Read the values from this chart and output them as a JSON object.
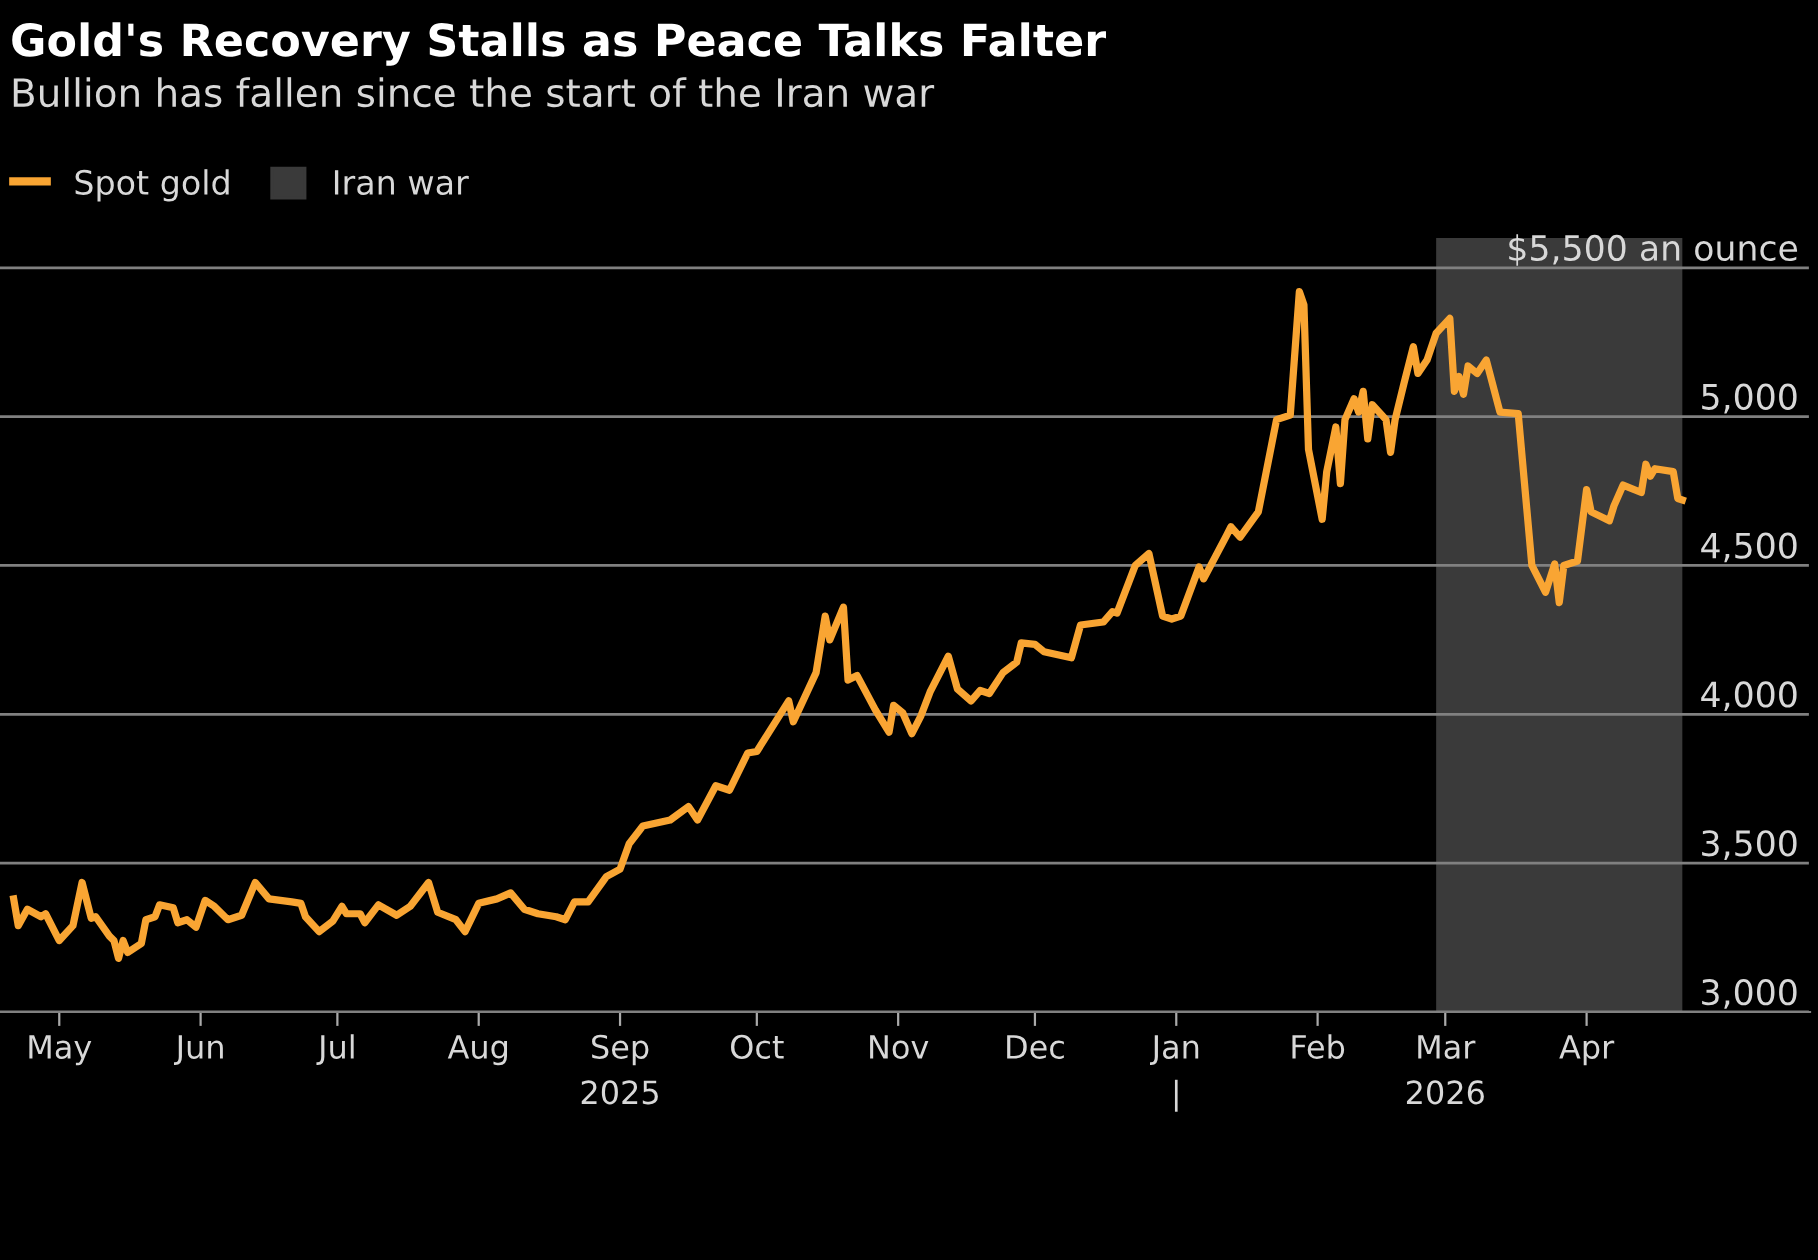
{
  "chart_data": {
    "type": "line",
    "title": "Gold's Recovery Stalls as Peace Talks Falter",
    "subtitle": "Bullion has fallen since the start of the Iran war",
    "series": [
      {
        "name": "Spot gold",
        "color": "#f9a533",
        "x": [
          "2025-04-21",
          "2025-04-22",
          "2025-04-24",
          "2025-04-27",
          "2025-04-28",
          "2025-05-01",
          "2025-05-04",
          "2025-05-06",
          "2025-05-08",
          "2025-05-09",
          "2025-05-12",
          "2025-05-13",
          "2025-05-14",
          "2025-05-15",
          "2025-05-16",
          "2025-05-19",
          "2025-05-20",
          "2025-05-22",
          "2025-05-23",
          "2025-05-26",
          "2025-05-27",
          "2025-05-29",
          "2025-05-31",
          "2025-06-02",
          "2025-06-04",
          "2025-06-07",
          "2025-06-10",
          "2025-06-13",
          "2025-06-16",
          "2025-06-21",
          "2025-06-23",
          "2025-06-24",
          "2025-06-27",
          "2025-06-30",
          "2025-07-02",
          "2025-07-03",
          "2025-07-06",
          "2025-07-07",
          "2025-07-10",
          "2025-07-14",
          "2025-07-17",
          "2025-07-21",
          "2025-07-23",
          "2025-07-27",
          "2025-07-29",
          "2025-08-01",
          "2025-08-05",
          "2025-08-08",
          "2025-08-11",
          "2025-08-14",
          "2025-08-18",
          "2025-08-20",
          "2025-08-22",
          "2025-08-25",
          "2025-08-29",
          "2025-09-01",
          "2025-09-03",
          "2025-09-06",
          "2025-09-09",
          "2025-09-12",
          "2025-09-16",
          "2025-09-18",
          "2025-09-22",
          "2025-09-25",
          "2025-09-29",
          "2025-10-01",
          "2025-10-08",
          "2025-10-09",
          "2025-10-14",
          "2025-10-16",
          "2025-10-17",
          "2025-10-20",
          "2025-10-21",
          "2025-10-23",
          "2025-10-27",
          "2025-10-30",
          "2025-10-31",
          "2025-11-02",
          "2025-11-04",
          "2025-11-06",
          "2025-11-08",
          "2025-11-12",
          "2025-11-14",
          "2025-11-17",
          "2025-11-19",
          "2025-11-21",
          "2025-11-24",
          "2025-11-27",
          "2025-11-28",
          "2025-12-01",
          "2025-12-03",
          "2025-12-09",
          "2025-12-11",
          "2025-12-16",
          "2025-12-18",
          "2025-12-19",
          "2025-12-23",
          "2025-12-26",
          "2025-12-29",
          "2025-12-31",
          "2026-01-02",
          "2026-01-06",
          "2026-01-07",
          "2026-01-12",
          "2026-01-13",
          "2026-01-15",
          "2026-01-19",
          "2026-01-23",
          "2026-01-26",
          "2026-01-28",
          "2026-01-29",
          "2026-01-30",
          "2026-02-02",
          "2026-02-03",
          "2026-02-05",
          "2026-02-06",
          "2026-02-07",
          "2026-02-09",
          "2026-02-10",
          "2026-02-11",
          "2026-02-12",
          "2026-02-13",
          "2026-02-16",
          "2026-02-17",
          "2026-02-18",
          "2026-02-20",
          "2026-02-22",
          "2026-02-23",
          "2026-02-25",
          "2026-02-27",
          "2026-03-02",
          "2026-03-03",
          "2026-03-04",
          "2026-03-05",
          "2026-03-06",
          "2026-03-08",
          "2026-03-10",
          "2026-03-13",
          "2026-03-17",
          "2026-03-20",
          "2026-03-23",
          "2026-03-25",
          "2026-03-26",
          "2026-03-27",
          "2026-03-30",
          "2026-04-01",
          "2026-04-02",
          "2026-04-06",
          "2026-04-07",
          "2026-04-09",
          "2026-04-13",
          "2026-04-14",
          "2026-04-15",
          "2026-04-16",
          "2026-04-20",
          "2026-04-21",
          "2026-04-22"
        ],
        "values": [
          3380,
          3290,
          3345,
          3320,
          3330,
          3240,
          3290,
          3435,
          3315,
          3320,
          3255,
          3240,
          3180,
          3240,
          3200,
          3230,
          3310,
          3320,
          3360,
          3350,
          3300,
          3310,
          3285,
          3375,
          3355,
          3310,
          3325,
          3435,
          3380,
          3370,
          3365,
          3320,
          3270,
          3305,
          3355,
          3330,
          3330,
          3300,
          3360,
          3325,
          3355,
          3435,
          3335,
          3310,
          3270,
          3365,
          3380,
          3400,
          3345,
          3330,
          3320,
          3310,
          3370,
          3370,
          3455,
          3480,
          3565,
          3625,
          3635,
          3645,
          3690,
          3645,
          3760,
          3745,
          3870,
          3875,
          4045,
          3975,
          4140,
          4330,
          4250,
          4360,
          4115,
          4130,
          4015,
          3940,
          4030,
          4005,
          3935,
          3995,
          4075,
          4195,
          4085,
          4045,
          4080,
          4070,
          4140,
          4175,
          4240,
          4235,
          4210,
          4190,
          4300,
          4310,
          4345,
          4340,
          4500,
          4540,
          4330,
          4320,
          4330,
          4495,
          4455,
          4600,
          4630,
          4595,
          4680,
          4990,
          5005,
          5420,
          5375,
          4890,
          4655,
          4815,
          4965,
          4775,
          4990,
          5060,
          5015,
          5085,
          4925,
          5040,
          4990,
          4880,
          4990,
          5115,
          5235,
          5145,
          5190,
          5280,
          5330,
          5085,
          5135,
          5075,
          5170,
          5145,
          5190,
          5015,
          5010,
          4500,
          4410,
          4505,
          4375,
          4500,
          4515,
          4755,
          4680,
          4650,
          4700,
          4770,
          4745,
          4840,
          4800,
          4825,
          4815,
          4725,
          4720
        ]
      }
    ],
    "bands": [
      {
        "axis": "x",
        "from": "2026-02-27",
        "to": "2026-04-22",
        "label": "Iran war",
        "color": "#3a3a3a"
      }
    ],
    "xlim": [
      "2025-04-18",
      "2026-05-20"
    ],
    "xticks": [
      {
        "value": "2025-05-01",
        "label": "May"
      },
      {
        "value": "2025-06-01",
        "label": "Jun"
      },
      {
        "value": "2025-07-01",
        "label": "Jul"
      },
      {
        "value": "2025-08-01",
        "label": "Aug"
      },
      {
        "value": "2025-09-01",
        "label": "Sep\n2025"
      },
      {
        "value": "2025-10-01",
        "label": "Oct"
      },
      {
        "value": "2025-11-01",
        "label": "Nov"
      },
      {
        "value": "2025-12-01",
        "label": "Dec"
      },
      {
        "value": "2026-01-01",
        "label": "Jan\n|"
      },
      {
        "value": "2026-02-01",
        "label": "Feb"
      },
      {
        "value": "2026-03-01",
        "label": "Mar\n2026"
      },
      {
        "value": "2026-04-01",
        "label": "Apr"
      }
    ],
    "ylim": [
      3000,
      5600
    ],
    "yticks": [
      {
        "value": 3000,
        "label": "3,000"
      },
      {
        "value": 3500,
        "label": "3,500"
      },
      {
        "value": 4000,
        "label": "4,000"
      },
      {
        "value": 4500,
        "label": "4,500"
      },
      {
        "value": 5000,
        "label": "5,000"
      },
      {
        "value": 5500,
        "label": "$5,500 an ounce"
      }
    ],
    "grid": "y",
    "legend": "top left"
  }
}
